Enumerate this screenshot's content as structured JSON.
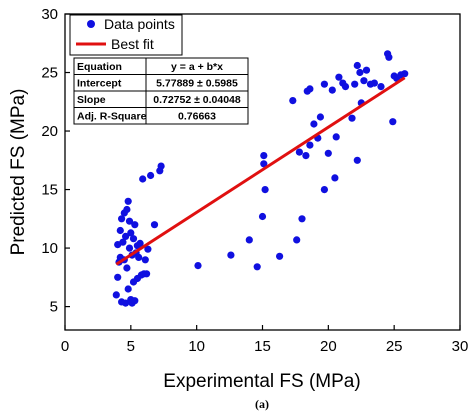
{
  "chart_data": {
    "type": "scatter",
    "xlabel": "Experimental FS (MPa)",
    "ylabel": "Predicted FS (MPa)",
    "xlim": [
      0,
      30
    ],
    "ylim": [
      3,
      30
    ],
    "xticks": [
      "0",
      "5",
      "10",
      "15",
      "20",
      "25",
      "30"
    ],
    "yticks": [
      "5",
      "10",
      "15",
      "20",
      "25",
      "30"
    ],
    "legend": {
      "position": "top-left",
      "entries": [
        "Data points",
        "Best fit"
      ]
    },
    "colors": {
      "points": "#1010e0",
      "fit": "#e01010"
    },
    "series": [
      {
        "name": "Data points",
        "x": [
          3.9,
          4.0,
          4.0,
          4.1,
          4.2,
          4.2,
          4.3,
          4.3,
          4.4,
          4.5,
          4.5,
          4.6,
          4.6,
          4.7,
          4.7,
          4.8,
          4.8,
          4.9,
          4.9,
          5.0,
          5.0,
          5.1,
          5.1,
          5.2,
          5.2,
          5.3,
          5.3,
          5.4,
          5.5,
          5.5,
          5.6,
          5.7,
          5.8,
          5.9,
          6.0,
          6.1,
          6.2,
          6.3,
          6.5,
          6.8,
          7.2,
          7.3,
          10.1,
          12.6,
          14.0,
          14.6,
          15.0,
          15.1,
          15.2,
          15.1,
          16.3,
          17.3,
          17.6,
          17.8,
          18.0,
          18.3,
          18.4,
          18.6,
          18.6,
          18.9,
          19.2,
          19.4,
          19.7,
          19.7,
          20.0,
          20.3,
          20.5,
          20.6,
          20.8,
          21.1,
          21.3,
          21.8,
          22.0,
          22.2,
          22.2,
          22.4,
          22.5,
          22.7,
          22.9,
          23.2,
          23.5,
          24.0,
          24.5,
          24.6,
          24.9,
          25.0,
          25.2,
          25.5,
          25.8
        ],
        "y": [
          6.0,
          7.5,
          10.3,
          8.8,
          11.5,
          9.2,
          12.5,
          5.4,
          10.5,
          13.0,
          9.0,
          5.3,
          11.0,
          13.3,
          8.3,
          14.0,
          6.5,
          10.0,
          12.3,
          5.6,
          11.3,
          9.4,
          5.3,
          10.8,
          7.1,
          5.5,
          12.0,
          9.6,
          7.4,
          10.2,
          9.2,
          10.4,
          7.7,
          15.9,
          7.8,
          9.0,
          7.8,
          9.9,
          16.2,
          12.0,
          16.6,
          17.0,
          8.5,
          9.4,
          10.7,
          8.4,
          12.7,
          17.9,
          15.0,
          17.2,
          9.3,
          22.6,
          10.7,
          18.2,
          12.5,
          17.9,
          23.4,
          18.8,
          23.6,
          20.6,
          19.4,
          21.2,
          15.0,
          24.0,
          18.1,
          23.5,
          16.0,
          19.5,
          24.6,
          24.1,
          23.8,
          21.1,
          24.0,
          25.6,
          17.5,
          25.0,
          22.4,
          24.3,
          25.2,
          24.0,
          24.1,
          23.8,
          26.6,
          26.3,
          20.8,
          24.7,
          24.5,
          24.8,
          24.9
        ]
      },
      {
        "name": "Best fit",
        "intercept": 5.77889,
        "slope": 0.72752,
        "x_range": [
          3.9,
          25.8
        ]
      }
    ],
    "stats_table": [
      [
        "Equation",
        "y = a + b*x"
      ],
      [
        "Intercept",
        "5.77889 ± 0.5985"
      ],
      [
        "Slope",
        "0.72752 ± 0.04048"
      ],
      [
        "Adj. R-Square",
        "0.76663"
      ]
    ]
  },
  "caption": "(a)"
}
